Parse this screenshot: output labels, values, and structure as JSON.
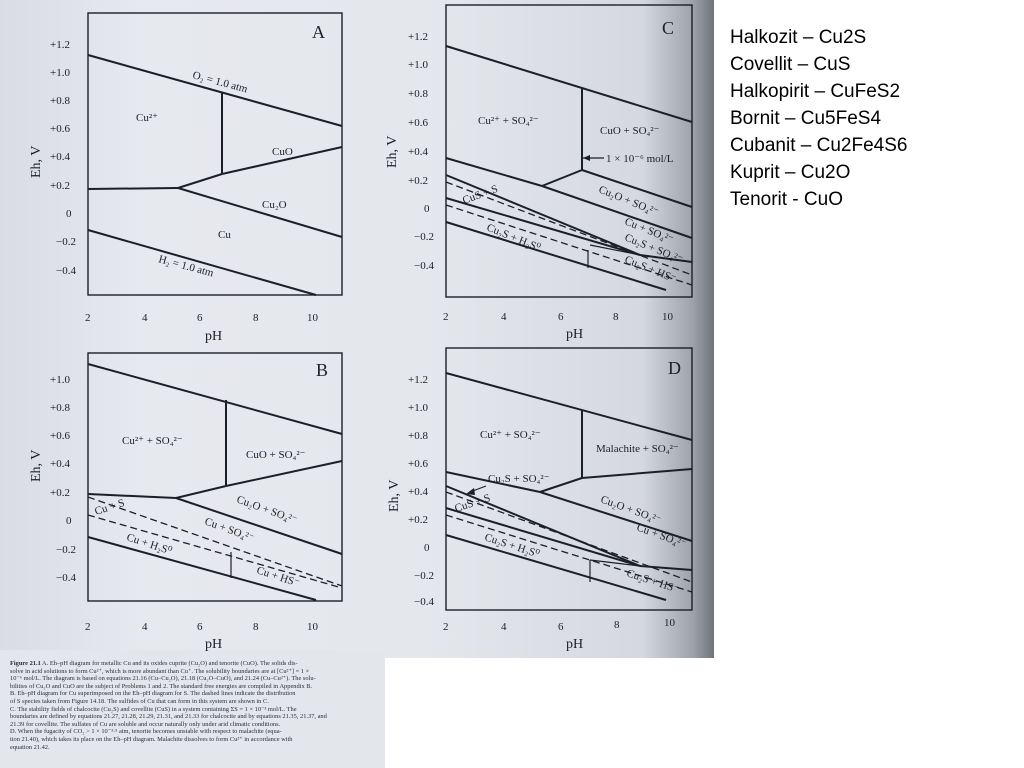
{
  "panels": {
    "A": {
      "letter": "A",
      "labels": [
        "Cu²⁺",
        "CuO",
        "Cu₂O",
        "Cu",
        "O₂ = 1.0 atm",
        "H₂ = 1.0 atm"
      ]
    },
    "B": {
      "letter": "B",
      "labels": [
        "Cu²⁺ + SO₄²⁻",
        "CuO + SO₄²⁻",
        "Cu₂O + SO₄²⁻",
        "Cu + SO₄²⁻",
        "Cu + S",
        "Cu + H₂S⁰",
        "Cu + HS⁻"
      ]
    },
    "C": {
      "letter": "C",
      "labels": [
        "Cu²⁺ + SO₄²⁻",
        "CuO + SO₄²⁻",
        "1 × 10⁻⁶ mol/L",
        "Cu₂O + SO₄²⁻",
        "Cu + SO₄²⁻",
        "CuS + S",
        "Cu₂S + SO₄²⁻",
        "Cu₂S + H₂S⁰",
        "Cu₂S + HS⁻"
      ]
    },
    "D": {
      "letter": "D",
      "labels": [
        "Cu²⁺ + SO₄²⁻",
        "Malachite + SO₄²⁻",
        "Cu₂S + SO₄²⁻",
        "Cu₂O + SO₄²⁻",
        "CuS + S",
        "Cu + SO₄²⁻",
        "Cu₂S + H₂S⁰",
        "Cu₂S + HS⁻"
      ]
    }
  },
  "axes": {
    "x_title": "pH",
    "y_title": "Eh, V",
    "x_ticks": [
      "2",
      "4",
      "6",
      "8",
      "10"
    ],
    "y_ticks_A": [
      "+1.2",
      "+1.0",
      "+0.8",
      "+0.6",
      "+0.4",
      "+0.2",
      "0",
      "−0.2",
      "−0.4"
    ],
    "y_ticks_B": [
      "+1.0",
      "+0.8",
      "+0.6",
      "+0.4",
      "+0.2",
      "0",
      "−0.2",
      "−0.4"
    ],
    "y_ticks_C": [
      "+1.2",
      "+1.0",
      "+0.8",
      "+0.6",
      "+0.4",
      "+0.2",
      "0",
      "−0.2",
      "−0.4"
    ],
    "y_ticks_D": [
      "+1.2",
      "+1.0",
      "+0.8",
      "+0.6",
      "+0.4",
      "+0.2",
      "0",
      "−0.2",
      "−0.4"
    ]
  },
  "legend": [
    "Halkozit – Cu2S",
    "Covellit – CuS",
    "Halkopirit – CuFeS2",
    "Bornit – Cu5FeS4",
    "Cubanit – Cu2Fe4S6",
    "Kuprit – Cu2O",
    "Tenorit - CuO"
  ],
  "caption": {
    "figure_label": "Figure 21.1",
    "lines": [
      "A. Eh–pH diagram for metallic Cu and its oxides cuprite (Cu₂O) and tenorite (CuO). The solids dis-",
      "solve in acid solutions to form Cu²⁺, which is more abundant than Cu⁺. The solubility boundaries are at [Cu²⁺] = 1 ×",
      "10⁻⁶ mol/L. The diagram is based on equations 21.16 (Cu–Cu₂O), 21.18 (Cu₂O–CuO), and 21.24 (Cu–Cu²⁺). The solu-",
      "bilities of Cu₂O and CuO are the subject of Problems 1 and 2. The standard free energies are compiled in Appendix B.",
      "B. Eh–pH diagram for Cu superimposed on the Eh–pH diagram for S. The dashed lines indicate the distribution",
      "of S species taken from Figure 14.18. The sulfides of Cu that can form in this system are shown in C.",
      "C. The stability fields of chalcocite (Cu₂S) and covellite (CuS) in a system containing ΣS = 1 × 10⁻³ mol/L. The",
      "boundaries are defined by equations 21.27, 21.28, 21.29, 21.31, and 21.33 for chalcocite and by equations 21.35, 21.37, and",
      "21.39 for covellite. The sulfates of Cu are soluble and occur naturally only under arid climatic conditions.",
      "D. When the fugacity of CO₂ > 1 × 10⁻³·⁵ atm, tenorite becomes unstable with respect to malachite (equa-",
      "tion 21.40), which takes its place on the Eh–pH diagram. Malachite dissolves to form Cu²⁺ in accordance with",
      "equation 21.42."
    ]
  }
}
